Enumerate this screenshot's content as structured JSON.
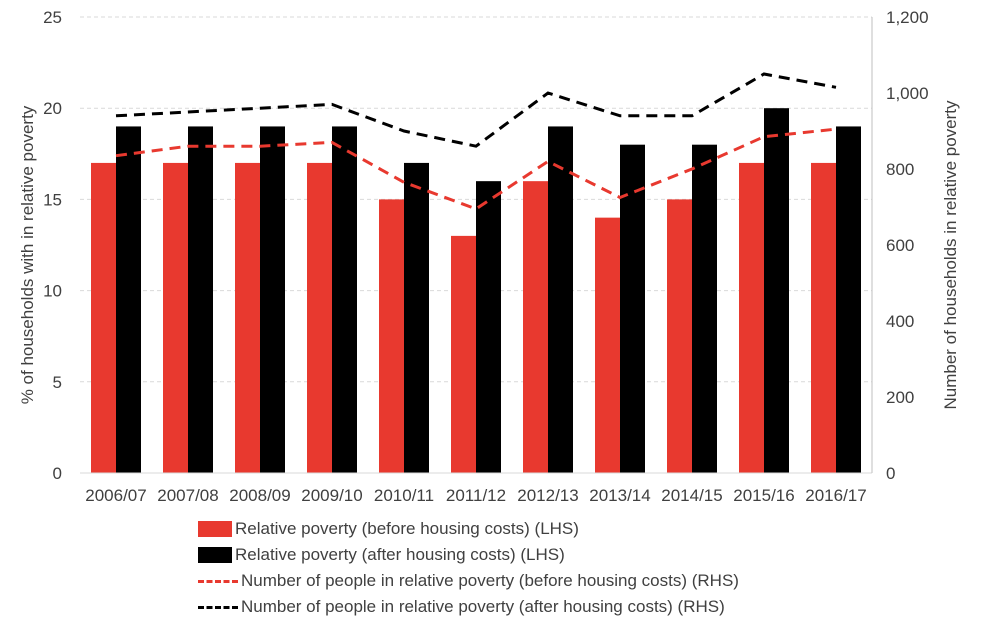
{
  "chart_data": {
    "type": "bar",
    "categories": [
      "2006/07",
      "2007/08",
      "2008/09",
      "2009/10",
      "2010/11",
      "2011/12",
      "2012/13",
      "2013/14",
      "2014/15",
      "2015/16",
      "2016/17"
    ],
    "series": [
      {
        "name": "Relative poverty (before housing costs) (LHS)",
        "type": "bar",
        "axis": "left",
        "color": "#e8392f",
        "values": [
          17,
          17,
          17,
          17,
          15,
          13,
          16,
          14,
          15,
          17,
          17
        ]
      },
      {
        "name": "Relative poverty (after housing costs) (LHS)",
        "type": "bar",
        "axis": "left",
        "color": "#000000",
        "values": [
          19,
          19,
          19,
          19,
          17,
          16,
          19,
          18,
          18,
          20,
          19
        ]
      },
      {
        "name": "Number of people in relative poverty (before housing costs) (RHS)",
        "type": "line",
        "style": "dashed",
        "axis": "right",
        "color": "#e8392f",
        "values": [
          835,
          860,
          860,
          870,
          765,
          695,
          820,
          725,
          800,
          885,
          905
        ]
      },
      {
        "name": "Number of people in relative poverty (after housing costs) (RHS)",
        "type": "line",
        "style": "dashed",
        "axis": "right",
        "color": "#000000",
        "values": [
          940,
          950,
          960,
          970,
          900,
          860,
          1000,
          940,
          940,
          1050,
          1015
        ]
      }
    ],
    "ylabel": "% of households with in relative poverty",
    "y2label": "Number of households in relative poverty",
    "ylim": [
      0,
      25
    ],
    "y2lim": [
      0,
      1200
    ],
    "yticks": [
      "0",
      "5",
      "10",
      "15",
      "20",
      "25"
    ],
    "y2ticks": [
      "0",
      "200",
      "400",
      "600",
      "800",
      "1,000",
      "1,200"
    ],
    "grid": true,
    "legend_position": "bottom"
  }
}
